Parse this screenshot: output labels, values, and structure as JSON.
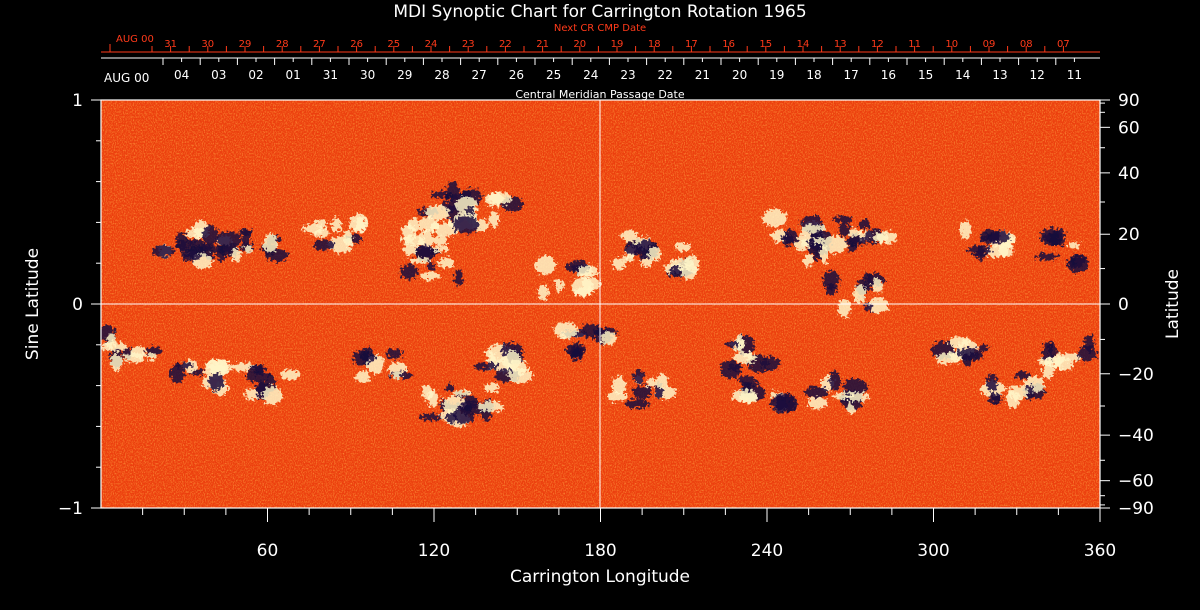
{
  "chart_data": {
    "type": "heatmap",
    "title": "MDI Synoptic Chart for Carrington Rotation 1965",
    "xlabel": "Carrington Longitude",
    "ylabel_left": "Sine Latitude",
    "ylabel_right": "Latitude",
    "xlim": [
      0,
      360
    ],
    "ylim": [
      -1,
      1
    ],
    "x_ticks": [
      60,
      120,
      180,
      240,
      300,
      360
    ],
    "y_ticks_left": [
      "1",
      "0",
      "−1"
    ],
    "y_ticks_right": [
      "90",
      "60",
      "40",
      "20",
      "0",
      "−20",
      "−40",
      "−60",
      "−90"
    ],
    "y_ticks_right_values": [
      90,
      60,
      40,
      20,
      0,
      -20,
      -40,
      -60,
      -90
    ],
    "top_axis_red": {
      "label": "Next CR CMP Date",
      "start_label": "AUG 00",
      "dates": [
        "31",
        "30",
        "29",
        "28",
        "27",
        "26",
        "25",
        "24",
        "23",
        "22",
        "21",
        "20",
        "19",
        "18",
        "17",
        "16",
        "15",
        "14",
        "13",
        "12",
        "11",
        "10",
        "09",
        "08",
        "07"
      ]
    },
    "top_axis_white": {
      "label": "Central Meridian Passage Date",
      "start_label": "AUG 00",
      "dates": [
        "04",
        "03",
        "02",
        "01",
        "31",
        "30",
        "29",
        "28",
        "27",
        "26",
        "25",
        "24",
        "23",
        "22",
        "21",
        "20",
        "19",
        "18",
        "17",
        "16",
        "15",
        "14",
        "13",
        "12",
        "11"
      ]
    },
    "colors": {
      "background": "#ff4a12",
      "positive_polarity": "#fff6c8",
      "negative_polarity": "#1a0a3c",
      "axes": "#ffffff",
      "secondary_axis": "#ff3a1a"
    },
    "active_regions": [
      {
        "lon": 30,
        "sinlat": 0.3,
        "polarity": "mixed"
      },
      {
        "lon": 40,
        "sinlat": 0.28,
        "polarity": "mixed"
      },
      {
        "lon": 55,
        "sinlat": 0.3,
        "polarity": "mixed"
      },
      {
        "lon": 85,
        "sinlat": 0.35,
        "polarity": "positive"
      },
      {
        "lon": 118,
        "sinlat": 0.38,
        "polarity": "positive"
      },
      {
        "lon": 120,
        "sinlat": 0.2,
        "polarity": "mixed"
      },
      {
        "lon": 125,
        "sinlat": 0.5,
        "polarity": "negative"
      },
      {
        "lon": 140,
        "sinlat": 0.45,
        "polarity": "positive"
      },
      {
        "lon": 168,
        "sinlat": 0.12,
        "polarity": "mixed"
      },
      {
        "lon": 190,
        "sinlat": 0.27,
        "polarity": "mixed"
      },
      {
        "lon": 205,
        "sinlat": 0.22,
        "polarity": "mixed"
      },
      {
        "lon": 250,
        "sinlat": 0.35,
        "polarity": "mixed"
      },
      {
        "lon": 262,
        "sinlat": 0.25,
        "polarity": "mixed"
      },
      {
        "lon": 275,
        "sinlat": 0.38,
        "polarity": "mixed"
      },
      {
        "lon": 272,
        "sinlat": 0.05,
        "polarity": "mixed"
      },
      {
        "lon": 320,
        "sinlat": 0.3,
        "polarity": "mixed"
      },
      {
        "lon": 345,
        "sinlat": 0.27,
        "polarity": "negative"
      },
      {
        "lon": 10,
        "sinlat": -0.22,
        "polarity": "mixed"
      },
      {
        "lon": 35,
        "sinlat": -0.35,
        "polarity": "mixed"
      },
      {
        "lon": 60,
        "sinlat": -0.38,
        "polarity": "mixed"
      },
      {
        "lon": 100,
        "sinlat": -0.3,
        "polarity": "mixed"
      },
      {
        "lon": 125,
        "sinlat": -0.5,
        "polarity": "positive"
      },
      {
        "lon": 133,
        "sinlat": -0.48,
        "polarity": "negative"
      },
      {
        "lon": 145,
        "sinlat": -0.3,
        "polarity": "mixed"
      },
      {
        "lon": 175,
        "sinlat": -0.2,
        "polarity": "negative"
      },
      {
        "lon": 195,
        "sinlat": -0.42,
        "polarity": "mixed"
      },
      {
        "lon": 235,
        "sinlat": -0.25,
        "polarity": "mixed"
      },
      {
        "lon": 240,
        "sinlat": -0.45,
        "polarity": "negative"
      },
      {
        "lon": 265,
        "sinlat": -0.45,
        "polarity": "mixed"
      },
      {
        "lon": 310,
        "sinlat": -0.2,
        "polarity": "mixed"
      },
      {
        "lon": 330,
        "sinlat": -0.42,
        "polarity": "negative"
      },
      {
        "lon": 350,
        "sinlat": -0.25,
        "polarity": "mixed"
      }
    ]
  }
}
